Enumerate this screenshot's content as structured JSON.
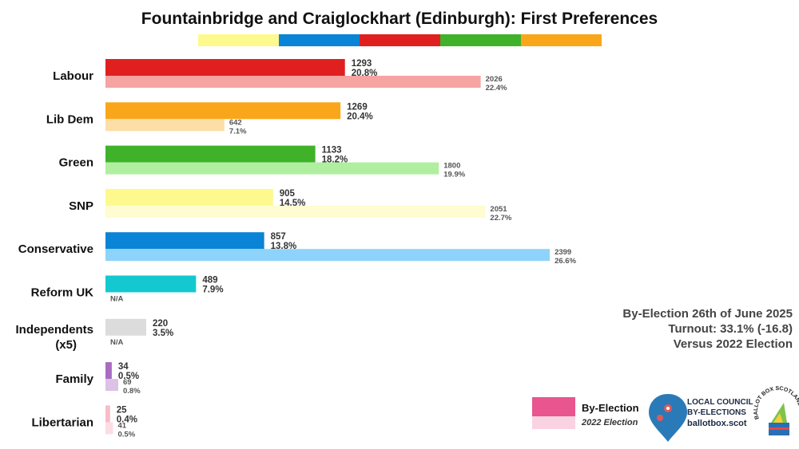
{
  "chart_data": {
    "type": "bar",
    "orientation": "horizontal",
    "title": "Fountainbridge and Craiglockhart (Edinburgh): First Preferences",
    "categories": [
      "Labour",
      "Lib Dem",
      "Green",
      "SNP",
      "Conservative",
      "Reform UK",
      "Independents",
      "Family",
      "Libertarian"
    ],
    "category_lines": [
      [
        "Labour"
      ],
      [
        "Lib Dem"
      ],
      [
        "Green"
      ],
      [
        "SNP"
      ],
      [
        "Conservative"
      ],
      [
        "Reform UK"
      ],
      [
        "Independents",
        "(x5)"
      ],
      [
        "Family"
      ],
      [
        "Libertarian"
      ]
    ],
    "series": [
      {
        "name": "By-Election",
        "votes": [
          1293,
          1269,
          1133,
          905,
          857,
          489,
          220,
          34,
          25
        ],
        "votes_text": [
          "1293",
          "1269",
          "1133",
          "905",
          "857",
          "489",
          "220",
          "34",
          "25"
        ],
        "share_text": [
          "20.8%",
          "20.4%",
          "18.2%",
          "14.5%",
          "13.8%",
          "7.9%",
          "3.5%",
          "0.5%",
          "0.4%"
        ],
        "colors": [
          "#e0201f",
          "#faa61a",
          "#3fb22a",
          "#fdf98c",
          "#0a84d6",
          "#14c8cf",
          "#dcdcdc",
          "#a86cc1",
          "#f7bcc8"
        ]
      },
      {
        "name": "2022 Election",
        "votes": [
          2026,
          642,
          1800,
          2051,
          2399,
          null,
          null,
          69,
          41
        ],
        "votes_text": [
          "2026",
          "642",
          "1800",
          "2051",
          "2399",
          "N/A",
          "N/A",
          "69",
          "41"
        ],
        "share_text": [
          "22.4%",
          "7.1%",
          "19.9%",
          "22.7%",
          "26.6%",
          "",
          "",
          "0.8%",
          "0.5%"
        ],
        "colors": [
          "#f5a4a2",
          "#fddea6",
          "#b0efa0",
          "#fefcd0",
          "#8dd3fb",
          "#a8ecef",
          "#eeeeee",
          "#dbc2e6",
          "#fbdde3"
        ]
      }
    ],
    "xlim": [
      0,
      2800
    ],
    "color_strip": [
      "#fdf98c",
      "#0a84d6",
      "#e0201f",
      "#3fb22a",
      "#faa61a"
    ],
    "annotations": [
      "By-Election 26th of June 2025",
      "Turnout: 33.1% (-16.8)",
      "Versus 2022 Election"
    ],
    "legend": {
      "position": "bottom-right",
      "items": [
        {
          "label": "By-Election",
          "color": "#e8558f"
        },
        {
          "label": "2022 Election",
          "color": "#f9d3e2"
        }
      ]
    }
  },
  "branding": {
    "logo_lines": [
      "LOCAL COUNCIL",
      "BY-ELECTIONS",
      "ballotbox.scot"
    ],
    "seal_text": "BALLOT BOX SCOTLAND",
    "pin_color": "#2b7ab8",
    "pin_accent": "#e05a5a"
  }
}
